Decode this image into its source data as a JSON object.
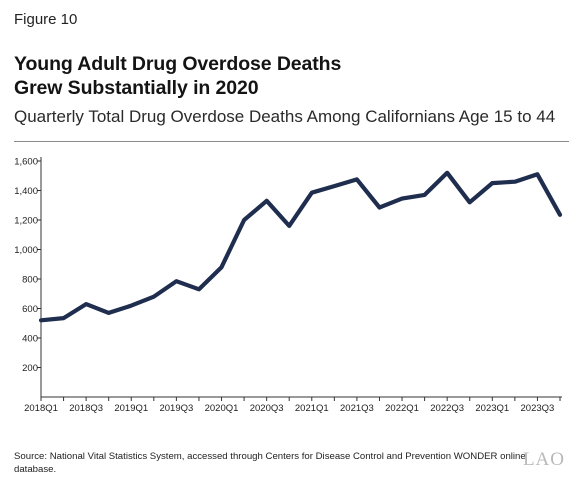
{
  "figure_label": "Figure 10",
  "title_lines": [
    "Young Adult Drug Overdose Deaths",
    "Grew Substantially in 2020"
  ],
  "subtitle": "Quarterly Total Drug Overdose Deaths Among Californians Age 15 to 44",
  "source": "Source: National Vital Statistics System, accessed through Centers for Disease Control and Prevention WONDER online database.",
  "logo_text": "LAO",
  "chart_data": {
    "type": "line",
    "title": "",
    "xlabel": "",
    "ylabel": "",
    "ylim": [
      0,
      1600
    ],
    "yticks": [
      200,
      400,
      600,
      800,
      1000,
      1200,
      1400,
      1600
    ],
    "ytick_labels": [
      "200",
      "400",
      "600",
      "800",
      "1,000",
      "1,200",
      "1,400",
      "1,600"
    ],
    "x": [
      "2018Q1",
      "2018Q2",
      "2018Q3",
      "2018Q4",
      "2019Q1",
      "2019Q2",
      "2019Q3",
      "2019Q4",
      "2020Q1",
      "2020Q2",
      "2020Q3",
      "2020Q4",
      "2021Q1",
      "2021Q2",
      "2021Q3",
      "2021Q4",
      "2022Q1",
      "2022Q2",
      "2022Q3",
      "2022Q4",
      "2023Q1",
      "2023Q2",
      "2023Q3",
      "2023Q4"
    ],
    "xtick_labels": [
      "2018Q1",
      "2018Q3",
      "2019Q1",
      "2019Q3",
      "2020Q1",
      "2020Q3",
      "2021Q1",
      "2021Q3",
      "2022Q1",
      "2022Q3",
      "2023Q1",
      "2023Q3"
    ],
    "grid": false,
    "legend": "none",
    "line_color": "#1f2d4e",
    "series": [
      {
        "values": [
          520,
          535,
          630,
          570,
          620,
          680,
          785,
          730,
          880,
          1200,
          1330,
          1160,
          1385,
          1430,
          1475,
          1285,
          1345,
          1370,
          1520,
          1320,
          1450,
          1460,
          1510,
          1235
        ]
      }
    ]
  }
}
